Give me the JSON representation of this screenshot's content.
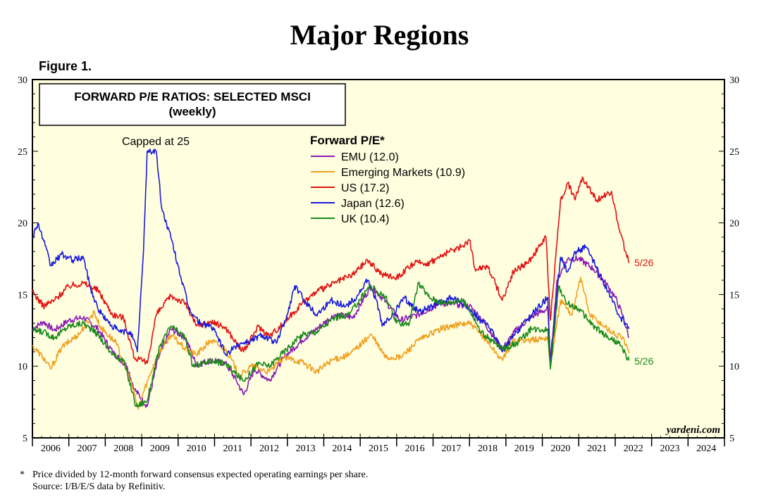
{
  "page": {
    "title": "Major Regions",
    "figure_label": "Figure 1.",
    "footnote_star": "*",
    "footnote": "Price divided by 12-month forward consensus expected operating earnings per share.",
    "source": "Source: I/B/E/S data by Refinitiv."
  },
  "chart_data": {
    "type": "line",
    "title_line1": "FORWARD P/E RATIOS: SELECTED MSCI",
    "title_line2": "(weekly)",
    "legend_title": "Forward P/E*",
    "watermark": "yardeni.com",
    "annotation_cap": "Capped at 25",
    "end_label_us": "5/26",
    "end_label_uk": "5/26",
    "background": "#ffffe0",
    "ylim": [
      5,
      30
    ],
    "y_ticks": [
      "5",
      "10",
      "15",
      "20",
      "25",
      "30"
    ],
    "xlim": [
      2006,
      2025
    ],
    "x_ticks": [
      "2006",
      "2007",
      "2008",
      "2009",
      "2010",
      "2011",
      "2012",
      "2013",
      "2014",
      "2015",
      "2016",
      "2017",
      "2018",
      "2019",
      "2020",
      "2021",
      "2022",
      "2023",
      "2024"
    ],
    "series": [
      {
        "name": "EMU (12.0)",
        "color": "#8a1ab4",
        "values": [
          [
            2006,
            12.6
          ],
          [
            2006.3,
            13.1
          ],
          [
            2006.6,
            12.5
          ],
          [
            2007,
            13.2
          ],
          [
            2007.4,
            13.4
          ],
          [
            2007.8,
            12.6
          ],
          [
            2008.2,
            11.0
          ],
          [
            2008.6,
            10.0
          ],
          [
            2008.8,
            8.4
          ],
          [
            2009.15,
            7.2
          ],
          [
            2009.45,
            10.5
          ],
          [
            2009.8,
            12.6
          ],
          [
            2010.2,
            12.0
          ],
          [
            2010.5,
            10.1
          ],
          [
            2010.9,
            10.4
          ],
          [
            2011.3,
            10.2
          ],
          [
            2011.6,
            9.0
          ],
          [
            2011.8,
            8.0
          ],
          [
            2012.1,
            9.8
          ],
          [
            2012.5,
            9.0
          ],
          [
            2012.9,
            10.6
          ],
          [
            2013.4,
            11.8
          ],
          [
            2013.8,
            12.6
          ],
          [
            2014.3,
            13.6
          ],
          [
            2014.8,
            13.4
          ],
          [
            2015.3,
            15.6
          ],
          [
            2015.7,
            14.5
          ],
          [
            2016.1,
            13.2
          ],
          [
            2016.6,
            13.6
          ],
          [
            2017.2,
            14.4
          ],
          [
            2017.7,
            14.3
          ],
          [
            2018.0,
            14.2
          ],
          [
            2018.3,
            13.4
          ],
          [
            2018.9,
            11.2
          ],
          [
            2019.3,
            12.6
          ],
          [
            2019.8,
            13.6
          ],
          [
            2020.15,
            14.0
          ],
          [
            2020.22,
            10.2
          ],
          [
            2020.4,
            16.0
          ],
          [
            2020.7,
            17.5
          ],
          [
            2021.0,
            17.5
          ],
          [
            2021.4,
            16.8
          ],
          [
            2021.8,
            15.6
          ],
          [
            2022.0,
            14.8
          ],
          [
            2022.2,
            13.6
          ],
          [
            2022.38,
            12.0
          ]
        ]
      },
      {
        "name": "Emerging Markets (10.9)",
        "color": "#f0a020",
        "values": [
          [
            2006,
            11.4
          ],
          [
            2006.3,
            10.6
          ],
          [
            2006.5,
            9.8
          ],
          [
            2006.8,
            11.3
          ],
          [
            2007.3,
            12.3
          ],
          [
            2007.7,
            13.8
          ],
          [
            2007.85,
            12.8
          ],
          [
            2008.3,
            11.6
          ],
          [
            2008.7,
            9.0
          ],
          [
            2008.9,
            7.0
          ],
          [
            2009.05,
            8.2
          ],
          [
            2009.4,
            10.6
          ],
          [
            2009.8,
            12.2
          ],
          [
            2010.2,
            11.2
          ],
          [
            2010.5,
            10.8
          ],
          [
            2010.9,
            11.8
          ],
          [
            2011.3,
            11.2
          ],
          [
            2011.7,
            9.3
          ],
          [
            2012.0,
            10.0
          ],
          [
            2012.5,
            9.6
          ],
          [
            2012.9,
            10.6
          ],
          [
            2013.4,
            10.3
          ],
          [
            2013.8,
            9.6
          ],
          [
            2014.2,
            10.4
          ],
          [
            2014.7,
            10.8
          ],
          [
            2015.3,
            12.2
          ],
          [
            2015.7,
            10.6
          ],
          [
            2016.1,
            10.6
          ],
          [
            2016.6,
            11.8
          ],
          [
            2017.2,
            12.6
          ],
          [
            2017.7,
            12.9
          ],
          [
            2018.0,
            13.0
          ],
          [
            2018.4,
            12.0
          ],
          [
            2018.9,
            10.4
          ],
          [
            2019.2,
            11.8
          ],
          [
            2019.7,
            11.8
          ],
          [
            2020.15,
            12.0
          ],
          [
            2020.22,
            10.0
          ],
          [
            2020.5,
            14.6
          ],
          [
            2020.8,
            13.6
          ],
          [
            2021.05,
            16.2
          ],
          [
            2021.3,
            13.6
          ],
          [
            2021.7,
            12.8
          ],
          [
            2022.0,
            12.2
          ],
          [
            2022.2,
            12.0
          ],
          [
            2022.38,
            10.9
          ]
        ]
      },
      {
        "name": "US (17.2)",
        "color": "#e21212",
        "values": [
          [
            2006,
            15.2
          ],
          [
            2006.3,
            14.2
          ],
          [
            2006.6,
            14.6
          ],
          [
            2007.0,
            15.6
          ],
          [
            2007.4,
            15.8
          ],
          [
            2007.8,
            15.3
          ],
          [
            2008.2,
            13.6
          ],
          [
            2008.5,
            13.4
          ],
          [
            2008.8,
            10.6
          ],
          [
            2009.15,
            10.2
          ],
          [
            2009.4,
            13.6
          ],
          [
            2009.8,
            14.9
          ],
          [
            2010.2,
            14.4
          ],
          [
            2010.5,
            12.8
          ],
          [
            2010.9,
            13.1
          ],
          [
            2011.3,
            12.7
          ],
          [
            2011.6,
            11.6
          ],
          [
            2011.8,
            11.0
          ],
          [
            2012.2,
            12.8
          ],
          [
            2012.5,
            12.1
          ],
          [
            2012.9,
            13.0
          ],
          [
            2013.4,
            14.4
          ],
          [
            2013.8,
            15.2
          ],
          [
            2014.3,
            15.8
          ],
          [
            2014.8,
            16.4
          ],
          [
            2015.2,
            17.4
          ],
          [
            2015.6,
            16.4
          ],
          [
            2016.0,
            16.2
          ],
          [
            2016.5,
            17.2
          ],
          [
            2016.9,
            17.2
          ],
          [
            2017.3,
            17.8
          ],
          [
            2017.8,
            18.4
          ],
          [
            2018.0,
            18.8
          ],
          [
            2018.15,
            16.8
          ],
          [
            2018.5,
            17.0
          ],
          [
            2018.9,
            14.6
          ],
          [
            2019.2,
            16.6
          ],
          [
            2019.6,
            17.2
          ],
          [
            2020.1,
            19.0
          ],
          [
            2020.22,
            13.2
          ],
          [
            2020.5,
            21.6
          ],
          [
            2020.7,
            22.8
          ],
          [
            2020.9,
            21.6
          ],
          [
            2021.1,
            23.2
          ],
          [
            2021.5,
            21.6
          ],
          [
            2021.9,
            22.2
          ],
          [
            2022.1,
            19.6
          ],
          [
            2022.38,
            17.2
          ]
        ]
      },
      {
        "name": "Japan (12.6)",
        "color": "#1a1adb",
        "values": [
          [
            2006,
            19.0
          ],
          [
            2006.15,
            20.0
          ],
          [
            2006.35,
            18.4
          ],
          [
            2006.5,
            17.0
          ],
          [
            2006.8,
            17.8
          ],
          [
            2007.1,
            17.4
          ],
          [
            2007.4,
            17.6
          ],
          [
            2007.6,
            15.4
          ],
          [
            2007.8,
            14.0
          ],
          [
            2008.1,
            13.0
          ],
          [
            2008.4,
            12.4
          ],
          [
            2008.7,
            12.4
          ],
          [
            2008.88,
            11.0
          ],
          [
            2009.05,
            18.0
          ],
          [
            2009.15,
            25.0
          ],
          [
            2009.4,
            25.0
          ],
          [
            2009.55,
            21.0
          ],
          [
            2009.8,
            19.0
          ],
          [
            2010.0,
            17.0
          ],
          [
            2010.3,
            14.0
          ],
          [
            2010.6,
            13.0
          ],
          [
            2010.9,
            12.8
          ],
          [
            2011.1,
            12.0
          ],
          [
            2011.3,
            10.8
          ],
          [
            2011.7,
            11.6
          ],
          [
            2012.0,
            11.8
          ],
          [
            2012.3,
            12.2
          ],
          [
            2012.7,
            11.6
          ],
          [
            2013.0,
            13.6
          ],
          [
            2013.2,
            15.6
          ],
          [
            2013.5,
            14.5
          ],
          [
            2013.8,
            13.6
          ],
          [
            2014.2,
            14.6
          ],
          [
            2014.6,
            14.2
          ],
          [
            2014.9,
            14.8
          ],
          [
            2015.2,
            16.0
          ],
          [
            2015.45,
            14.6
          ],
          [
            2015.6,
            12.8
          ],
          [
            2015.9,
            13.6
          ],
          [
            2016.2,
            14.8
          ],
          [
            2016.6,
            13.8
          ],
          [
            2017.0,
            14.2
          ],
          [
            2017.5,
            14.8
          ],
          [
            2017.9,
            14.2
          ],
          [
            2018.2,
            13.4
          ],
          [
            2018.6,
            12.6
          ],
          [
            2018.9,
            11.0
          ],
          [
            2019.3,
            12.4
          ],
          [
            2019.7,
            13.6
          ],
          [
            2020.15,
            14.8
          ],
          [
            2020.22,
            10.2
          ],
          [
            2020.5,
            17.6
          ],
          [
            2020.7,
            16.6
          ],
          [
            2020.9,
            18.0
          ],
          [
            2021.2,
            18.3
          ],
          [
            2021.5,
            16.8
          ],
          [
            2021.8,
            15.2
          ],
          [
            2022.1,
            13.6
          ],
          [
            2022.38,
            12.6
          ]
        ]
      },
      {
        "name": "UK (10.4)",
        "color": "#1a8a1a",
        "values": [
          [
            2006,
            12.5
          ],
          [
            2006.3,
            12.4
          ],
          [
            2006.6,
            12.0
          ],
          [
            2007.0,
            12.8
          ],
          [
            2007.4,
            13.0
          ],
          [
            2007.8,
            12.2
          ],
          [
            2008.2,
            10.8
          ],
          [
            2008.5,
            10.4
          ],
          [
            2008.85,
            7.2
          ],
          [
            2009.15,
            7.6
          ],
          [
            2009.5,
            11.4
          ],
          [
            2009.8,
            12.8
          ],
          [
            2010.2,
            12.0
          ],
          [
            2010.4,
            10.0
          ],
          [
            2010.9,
            10.4
          ],
          [
            2011.3,
            10.2
          ],
          [
            2011.6,
            9.4
          ],
          [
            2011.8,
            9.0
          ],
          [
            2012.2,
            10.2
          ],
          [
            2012.5,
            10.0
          ],
          [
            2012.9,
            11.0
          ],
          [
            2013.4,
            12.2
          ],
          [
            2013.8,
            12.4
          ],
          [
            2014.3,
            13.4
          ],
          [
            2014.7,
            13.6
          ],
          [
            2015.25,
            15.6
          ],
          [
            2015.7,
            14.8
          ],
          [
            2016.0,
            13.0
          ],
          [
            2016.35,
            13.0
          ],
          [
            2016.6,
            15.8
          ],
          [
            2016.9,
            14.8
          ],
          [
            2017.3,
            14.4
          ],
          [
            2017.8,
            14.6
          ],
          [
            2018.0,
            14.0
          ],
          [
            2018.3,
            12.4
          ],
          [
            2018.9,
            11.2
          ],
          [
            2019.3,
            11.6
          ],
          [
            2019.7,
            12.6
          ],
          [
            2020.15,
            12.6
          ],
          [
            2020.22,
            9.8
          ],
          [
            2020.45,
            15.6
          ],
          [
            2020.65,
            14.4
          ],
          [
            2021.0,
            14.0
          ],
          [
            2021.4,
            12.8
          ],
          [
            2021.8,
            12.0
          ],
          [
            2022.1,
            11.6
          ],
          [
            2022.38,
            10.4
          ]
        ]
      }
    ]
  }
}
